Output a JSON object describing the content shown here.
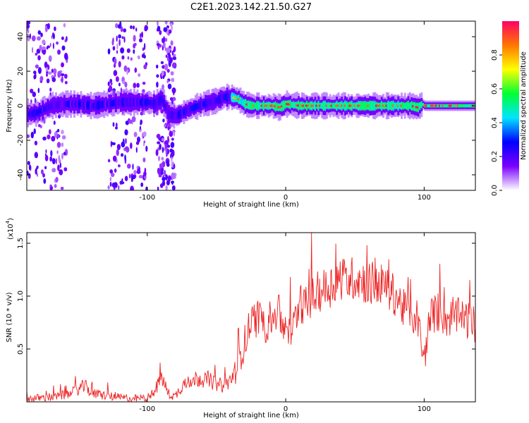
{
  "figure": {
    "title": "C2E1.2023.142.21.50.G27"
  },
  "chart_data": [
    {
      "type": "heatmap",
      "title": "C2E1.2023.142.21.50.G27",
      "xlabel": "Height of straight line (km)",
      "ylabel": "Frequency (Hz)",
      "xlim": [
        -187,
        137
      ],
      "ylim": [
        -49,
        49
      ],
      "x_ticks": [
        -100,
        0,
        100
      ],
      "x_tick_labels": [
        "-100",
        "0",
        "100"
      ],
      "y_ticks": [
        -40,
        -20,
        0,
        20,
        40
      ],
      "y_tick_labels": [
        "-40",
        "-20",
        "0",
        "20",
        "40"
      ],
      "grid": false,
      "ridge": {
        "description_units": "frequency center (Hz) vs height (km)",
        "x": [
          -187,
          -180,
          -170,
          -160,
          -150,
          -140,
          -130,
          -120,
          -110,
          -100,
          -95,
          -90,
          -85,
          -80,
          -70,
          -60,
          -50,
          -45,
          -40,
          -35,
          -30,
          -25,
          -20,
          -15,
          -10,
          -5,
          0,
          10,
          20,
          40,
          60,
          80,
          90,
          95,
          98,
          100,
          110,
          120,
          137
        ],
        "y": [
          -5,
          -4,
          0,
          1,
          1,
          0,
          1,
          2,
          2,
          2,
          1,
          4,
          -5,
          -6,
          -2,
          1,
          3,
          5,
          5,
          4,
          1,
          0,
          0,
          0,
          0,
          -1,
          1,
          0,
          0,
          0,
          0,
          0,
          0,
          -1,
          1,
          0,
          0,
          0,
          0
        ]
      },
      "colorbar": {
        "label": "Normalized spectral amplitude",
        "range": [
          0.0,
          1.0
        ],
        "ticks": [
          0.0,
          0.2,
          0.4,
          0.6,
          0.8
        ],
        "tick_labels": [
          "0.0",
          "0.2",
          "0.4",
          "0.6",
          "0.8"
        ],
        "colormap": [
          "#ffffff",
          "#7b00ff",
          "#0000ff",
          "#00e5ff",
          "#00ff33",
          "#ffff00",
          "#ff7700",
          "#ff0066"
        ]
      }
    },
    {
      "type": "line",
      "xlabel": "Height of straight line (km)",
      "ylabel": "SNR (10 * v/v)",
      "multiplier_base": "(x10",
      "multiplier_exp": "4",
      "multiplier_close": ")",
      "xlim": [
        -187,
        137
      ],
      "ylim": [
        0,
        1.6
      ],
      "x_ticks": [
        -100,
        0,
        100
      ],
      "x_tick_labels": [
        "-100",
        "0",
        "100"
      ],
      "y_ticks": [
        0.5,
        1.0,
        1.5
      ],
      "y_tick_labels": [
        "0.5",
        "1.0",
        "1.5"
      ],
      "grid": false,
      "color": "#ee2222",
      "series": [
        {
          "x": [
            -187,
            -175,
            -165,
            -155,
            -150,
            -145,
            -140,
            -130,
            -120,
            -110,
            -100,
            -95,
            -90,
            -87,
            -85,
            -80,
            -75,
            -70,
            -65,
            -60,
            -55,
            -50,
            -45,
            -40,
            -35,
            -30,
            -25,
            -20,
            -15,
            -10,
            -5,
            0,
            5,
            10,
            15,
            20,
            25,
            30,
            35,
            40,
            45,
            50,
            55,
            60,
            65,
            70,
            75,
            80,
            85,
            90,
            95,
            98,
            100,
            102,
            105,
            110,
            115,
            120,
            125,
            130,
            135,
            137
          ],
          "y": [
            0.03,
            0.04,
            0.05,
            0.08,
            0.12,
            0.15,
            0.08,
            0.06,
            0.04,
            0.03,
            0.04,
            0.08,
            0.25,
            0.15,
            0.08,
            0.05,
            0.15,
            0.2,
            0.22,
            0.22,
            0.2,
            0.17,
            0.15,
            0.2,
            0.35,
            0.55,
            0.75,
            0.8,
            0.72,
            0.78,
            0.85,
            0.62,
            0.68,
            0.95,
            0.9,
            1.0,
            1.05,
            1.08,
            1.12,
            1.18,
            1.15,
            1.18,
            1.15,
            1.12,
            1.13,
            1.1,
            1.05,
            1.0,
            0.88,
            0.82,
            0.8,
            0.55,
            0.35,
            0.62,
            0.82,
            0.85,
            0.78,
            0.8,
            0.8,
            0.78,
            0.75,
            0.7
          ]
        }
      ]
    }
  ]
}
